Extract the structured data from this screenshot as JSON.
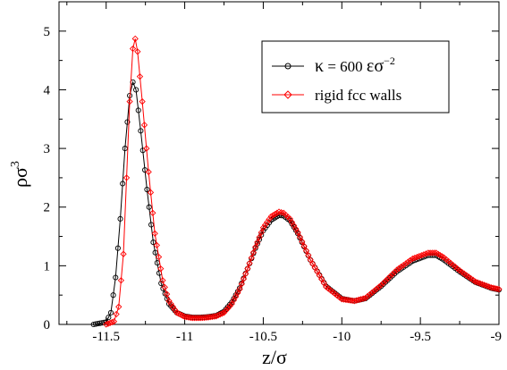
{
  "chart_data": {
    "type": "line",
    "xlabel": "z/σ",
    "ylabel": "ρσ",
    "ylabel_sup": "3",
    "xlim": [
      -11.8,
      -9.0
    ],
    "ylim": [
      0,
      5.5
    ],
    "x_ticks": [
      -11.5,
      -11,
      -10.5,
      -10,
      -9.5,
      -9
    ],
    "y_ticks": [
      0,
      1,
      2,
      3,
      4,
      5
    ],
    "x_tick_labels": [
      "-11.5",
      "-11",
      "-10.5",
      "-10",
      "-9.5",
      "-9"
    ],
    "y_tick_labels": [
      "0",
      "1",
      "2",
      "3",
      "4",
      "5"
    ],
    "minor_x_ticks": [
      -11.75,
      -11.25,
      -10.75,
      -10.25,
      -9.75,
      -9.25
    ],
    "minor_y_ticks": [
      0.5,
      1.5,
      2.5,
      3.5,
      4.5
    ],
    "grid": false,
    "legend_position": "top-right",
    "legend": {
      "entries": [
        {
          "kappa": "κ",
          "equals": " = 600 ",
          "eps": "ε",
          "sigma": "σ",
          "sup": "−2"
        },
        {
          "label": "rigid fcc walls"
        }
      ]
    },
    "series": [
      {
        "color": "#000000",
        "marker": "circle",
        "points": [
          [
            -11.58,
            0.0
          ],
          [
            -11.5,
            0.04
          ],
          [
            -11.47,
            0.2
          ],
          [
            -11.44,
            0.8
          ],
          [
            -11.41,
            1.8
          ],
          [
            -11.38,
            3.0
          ],
          [
            -11.35,
            3.9
          ],
          [
            -11.33,
            4.13
          ],
          [
            -11.31,
            4.0
          ],
          [
            -11.28,
            3.3
          ],
          [
            -11.24,
            2.3
          ],
          [
            -11.2,
            1.4
          ],
          [
            -11.15,
            0.7
          ],
          [
            -11.1,
            0.35
          ],
          [
            -11.05,
            0.2
          ],
          [
            -11.0,
            0.14
          ],
          [
            -10.95,
            0.12
          ],
          [
            -10.9,
            0.12
          ],
          [
            -10.85,
            0.13
          ],
          [
            -10.8,
            0.15
          ],
          [
            -10.75,
            0.22
          ],
          [
            -10.7,
            0.38
          ],
          [
            -10.65,
            0.62
          ],
          [
            -10.6,
            0.95
          ],
          [
            -10.55,
            1.3
          ],
          [
            -10.5,
            1.6
          ],
          [
            -10.45,
            1.78
          ],
          [
            -10.4,
            1.86
          ],
          [
            -10.37,
            1.85
          ],
          [
            -10.33,
            1.77
          ],
          [
            -10.28,
            1.55
          ],
          [
            -10.2,
            1.1
          ],
          [
            -10.1,
            0.65
          ],
          [
            -10.0,
            0.44
          ],
          [
            -9.92,
            0.4
          ],
          [
            -9.85,
            0.44
          ],
          [
            -9.75,
            0.65
          ],
          [
            -9.65,
            0.9
          ],
          [
            -9.55,
            1.08
          ],
          [
            -9.45,
            1.18
          ],
          [
            -9.4,
            1.18
          ],
          [
            -9.35,
            1.1
          ],
          [
            -9.25,
            0.9
          ],
          [
            -9.15,
            0.72
          ],
          [
            -9.05,
            0.62
          ],
          [
            -9.0,
            0.59
          ]
        ]
      },
      {
        "color": "#ff0000",
        "marker": "diamond",
        "points": [
          [
            -11.5,
            0.0
          ],
          [
            -11.45,
            0.05
          ],
          [
            -11.42,
            0.3
          ],
          [
            -11.39,
            1.2
          ],
          [
            -11.37,
            2.5
          ],
          [
            -11.35,
            3.8
          ],
          [
            -11.33,
            4.7
          ],
          [
            -11.315,
            4.87
          ],
          [
            -11.3,
            4.65
          ],
          [
            -11.27,
            3.8
          ],
          [
            -11.23,
            2.6
          ],
          [
            -11.19,
            1.55
          ],
          [
            -11.14,
            0.75
          ],
          [
            -11.1,
            0.4
          ],
          [
            -11.05,
            0.2
          ],
          [
            -11.0,
            0.13
          ],
          [
            -10.95,
            0.11
          ],
          [
            -10.9,
            0.11
          ],
          [
            -10.85,
            0.12
          ],
          [
            -10.8,
            0.14
          ],
          [
            -10.75,
            0.2
          ],
          [
            -10.7,
            0.35
          ],
          [
            -10.65,
            0.6
          ],
          [
            -10.6,
            0.95
          ],
          [
            -10.55,
            1.32
          ],
          [
            -10.5,
            1.65
          ],
          [
            -10.45,
            1.84
          ],
          [
            -10.4,
            1.92
          ],
          [
            -10.37,
            1.9
          ],
          [
            -10.33,
            1.8
          ],
          [
            -10.28,
            1.57
          ],
          [
            -10.2,
            1.1
          ],
          [
            -10.1,
            0.64
          ],
          [
            -10.0,
            0.43
          ],
          [
            -9.92,
            0.4
          ],
          [
            -9.85,
            0.45
          ],
          [
            -9.75,
            0.67
          ],
          [
            -9.65,
            0.93
          ],
          [
            -9.55,
            1.12
          ],
          [
            -9.45,
            1.22
          ],
          [
            -9.4,
            1.22
          ],
          [
            -9.35,
            1.14
          ],
          [
            -9.25,
            0.92
          ],
          [
            -9.15,
            0.73
          ],
          [
            -9.05,
            0.63
          ],
          [
            -9.0,
            0.6
          ]
        ]
      }
    ]
  }
}
